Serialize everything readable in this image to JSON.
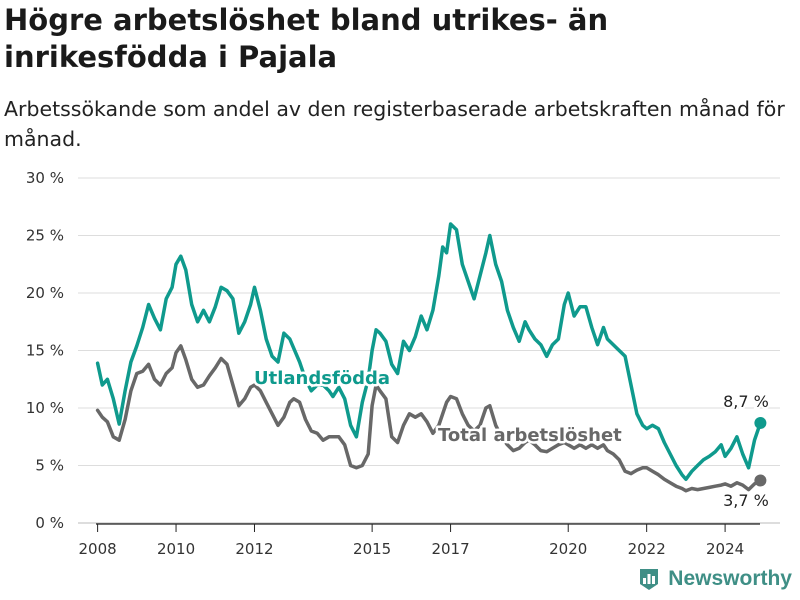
{
  "title": "Högre arbetslöshet bland utrikes- än inrikesfödda i Pajala",
  "subtitle": "Arbetssökande som andel av den registerbaserade arbetskraften månad för månad.",
  "brand": "Newsworthy",
  "colors": {
    "foreign_born": "#0f9a8d",
    "total": "#686868",
    "grid": "#dddddd",
    "text": "#333333"
  },
  "chart_data": {
    "type": "line",
    "title": "",
    "xlabel": "",
    "ylabel": "",
    "ylim": [
      0,
      30
    ],
    "xlim": [
      2007.5,
      2025.4
    ],
    "y_ticks": [
      0,
      5,
      10,
      15,
      20,
      25,
      30
    ],
    "y_tick_labels": [
      "0 %",
      "5 %",
      "10 %",
      "15 %",
      "20 %",
      "25 %",
      "30 %"
    ],
    "x_ticks": [
      2008,
      2010,
      2012,
      2015,
      2017,
      2020,
      2022,
      2024
    ],
    "x_tick_labels": [
      "2008",
      "2010",
      "2012",
      "2015",
      "2017",
      "2020",
      "2022",
      "2024"
    ],
    "grid": true,
    "legend": "inline labels",
    "series": [
      {
        "name": "Utlandsfödda",
        "end_label": "8,7 %",
        "x": [
          2008.0,
          2008.12,
          2008.25,
          2008.4,
          2008.55,
          2008.7,
          2008.85,
          2009.0,
          2009.15,
          2009.3,
          2009.45,
          2009.6,
          2009.75,
          2009.9,
          2010.0,
          2010.12,
          2010.25,
          2010.4,
          2010.55,
          2010.7,
          2010.85,
          2011.0,
          2011.15,
          2011.3,
          2011.45,
          2011.6,
          2011.75,
          2011.9,
          2012.0,
          2012.15,
          2012.3,
          2012.45,
          2012.6,
          2012.75,
          2012.9,
          2013.0,
          2013.15,
          2013.3,
          2013.45,
          2013.6,
          2013.75,
          2013.9,
          2014.0,
          2014.15,
          2014.3,
          2014.45,
          2014.6,
          2014.75,
          2014.9,
          2015.0,
          2015.1,
          2015.2,
          2015.35,
          2015.5,
          2015.65,
          2015.8,
          2015.95,
          2016.1,
          2016.25,
          2016.4,
          2016.55,
          2016.7,
          2016.8,
          2016.9,
          2017.0,
          2017.15,
          2017.3,
          2017.45,
          2017.6,
          2017.75,
          2017.9,
          2018.0,
          2018.15,
          2018.3,
          2018.45,
          2018.6,
          2018.75,
          2018.9,
          2019.0,
          2019.15,
          2019.3,
          2019.45,
          2019.6,
          2019.75,
          2019.9,
          2020.0,
          2020.15,
          2020.3,
          2020.45,
          2020.6,
          2020.75,
          2020.9,
          2021.0,
          2021.15,
          2021.3,
          2021.45,
          2021.6,
          2021.75,
          2021.9,
          2022.0,
          2022.15,
          2022.3,
          2022.45,
          2022.6,
          2022.75,
          2022.9,
          2023.0,
          2023.15,
          2023.3,
          2023.45,
          2023.6,
          2023.75,
          2023.9,
          2024.0,
          2024.15,
          2024.3,
          2024.45,
          2024.6,
          2024.75,
          2024.9
        ],
        "y": [
          13.9,
          12.0,
          12.5,
          10.8,
          8.6,
          11.5,
          14.0,
          15.4,
          17.0,
          19.0,
          17.8,
          16.8,
          19.5,
          20.5,
          22.5,
          23.2,
          22.0,
          19.0,
          17.5,
          18.5,
          17.5,
          18.8,
          20.5,
          20.2,
          19.5,
          16.5,
          17.5,
          19.0,
          20.5,
          18.5,
          16.0,
          14.5,
          14.0,
          16.5,
          16.0,
          15.2,
          14.0,
          12.5,
          11.5,
          12.0,
          12.0,
          11.5,
          11.0,
          11.8,
          10.8,
          8.5,
          7.5,
          10.5,
          12.5,
          15.0,
          16.8,
          16.5,
          15.8,
          13.8,
          13.0,
          15.8,
          15.0,
          16.2,
          18.0,
          16.8,
          18.5,
          21.5,
          24.0,
          23.5,
          26.0,
          25.5,
          22.5,
          21.0,
          19.5,
          21.5,
          23.5,
          25.0,
          22.5,
          21.0,
          18.5,
          17.0,
          15.8,
          17.5,
          16.8,
          16.0,
          15.5,
          14.5,
          15.5,
          16.0,
          19.0,
          20.0,
          18.0,
          18.8,
          18.8,
          17.0,
          15.5,
          17.0,
          16.0,
          15.5,
          15.0,
          14.5,
          12.0,
          9.5,
          8.5,
          8.2,
          8.5,
          8.2,
          7.0,
          6.0,
          5.0,
          4.2,
          3.8,
          4.5,
          5.0,
          5.5,
          5.8,
          6.2,
          6.8,
          5.8,
          6.5,
          7.5,
          6.0,
          4.8,
          7.2,
          8.7
        ]
      },
      {
        "name": "Total arbetslöshet",
        "end_label": "3,7 %",
        "x": [
          2008.0,
          2008.12,
          2008.25,
          2008.4,
          2008.55,
          2008.7,
          2008.85,
          2009.0,
          2009.15,
          2009.3,
          2009.45,
          2009.6,
          2009.75,
          2009.9,
          2010.0,
          2010.12,
          2010.25,
          2010.4,
          2010.55,
          2010.7,
          2010.85,
          2011.0,
          2011.15,
          2011.3,
          2011.45,
          2011.6,
          2011.75,
          2011.9,
          2012.0,
          2012.15,
          2012.3,
          2012.45,
          2012.6,
          2012.75,
          2012.9,
          2013.0,
          2013.15,
          2013.3,
          2013.45,
          2013.6,
          2013.75,
          2013.9,
          2014.0,
          2014.15,
          2014.3,
          2014.45,
          2014.6,
          2014.75,
          2014.9,
          2015.0,
          2015.1,
          2015.2,
          2015.35,
          2015.5,
          2015.65,
          2015.8,
          2015.95,
          2016.1,
          2016.25,
          2016.4,
          2016.55,
          2016.7,
          2016.8,
          2016.9,
          2017.0,
          2017.15,
          2017.3,
          2017.45,
          2017.6,
          2017.75,
          2017.9,
          2018.0,
          2018.15,
          2018.3,
          2018.45,
          2018.6,
          2018.75,
          2018.9,
          2019.0,
          2019.15,
          2019.3,
          2019.45,
          2019.6,
          2019.75,
          2019.9,
          2020.0,
          2020.15,
          2020.3,
          2020.45,
          2020.6,
          2020.75,
          2020.9,
          2021.0,
          2021.15,
          2021.3,
          2021.45,
          2021.6,
          2021.75,
          2021.9,
          2022.0,
          2022.15,
          2022.3,
          2022.45,
          2022.6,
          2022.75,
          2022.9,
          2023.0,
          2023.15,
          2023.3,
          2023.45,
          2023.6,
          2023.75,
          2023.9,
          2024.0,
          2024.15,
          2024.3,
          2024.45,
          2024.6,
          2024.75,
          2024.9
        ],
        "y": [
          9.8,
          9.2,
          8.8,
          7.5,
          7.2,
          9.0,
          11.5,
          13.0,
          13.2,
          13.8,
          12.5,
          12.0,
          13.0,
          13.5,
          14.8,
          15.4,
          14.2,
          12.5,
          11.8,
          12.0,
          12.8,
          13.5,
          14.3,
          13.8,
          12.0,
          10.2,
          10.8,
          11.8,
          12.0,
          11.5,
          10.5,
          9.5,
          8.5,
          9.2,
          10.5,
          10.8,
          10.5,
          9.0,
          8.0,
          7.8,
          7.2,
          7.5,
          7.5,
          7.5,
          6.8,
          5.0,
          4.8,
          5.0,
          6.0,
          10.2,
          12.0,
          11.5,
          10.8,
          7.5,
          7.0,
          8.5,
          9.5,
          9.2,
          9.5,
          8.8,
          7.8,
          8.5,
          9.5,
          10.5,
          11.0,
          10.8,
          9.5,
          8.5,
          8.0,
          8.5,
          10.0,
          10.2,
          8.5,
          7.5,
          6.8,
          6.3,
          6.5,
          7.0,
          7.2,
          6.8,
          6.3,
          6.2,
          6.5,
          6.8,
          7.0,
          6.8,
          6.5,
          6.8,
          6.5,
          6.8,
          6.5,
          6.8,
          6.3,
          6.0,
          5.5,
          4.5,
          4.3,
          4.6,
          4.8,
          4.8,
          4.5,
          4.2,
          3.8,
          3.5,
          3.2,
          3.0,
          2.8,
          3.0,
          2.9,
          3.0,
          3.1,
          3.2,
          3.3,
          3.4,
          3.2,
          3.5,
          3.3,
          2.9,
          3.4,
          3.7
        ]
      }
    ]
  }
}
